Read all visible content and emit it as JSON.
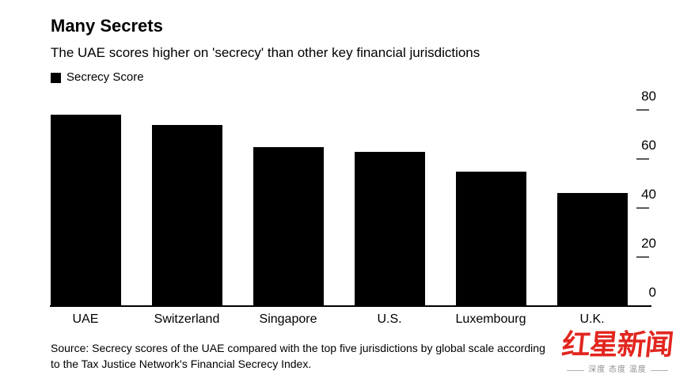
{
  "header": {
    "title": "Many Secrets",
    "subtitle": "The UAE scores higher on 'secrecy' than other key financial jurisdictions"
  },
  "legend": {
    "label": "Secrecy Score",
    "swatch_color": "#000000"
  },
  "chart_data": {
    "type": "bar",
    "title": "Many Secrets",
    "subtitle": "The UAE scores higher on 'secrecy' than other key financial jurisdictions",
    "series_name": "Secrecy Score",
    "categories": [
      "UAE",
      "Switzerland",
      "Singapore",
      "U.S.",
      "Luxembourg",
      "U.K."
    ],
    "values": [
      78,
      74,
      65,
      63,
      55,
      46
    ],
    "xlabel": "",
    "ylabel": "",
    "ylim": [
      0,
      80
    ],
    "yticks": [
      0,
      20,
      40,
      60,
      80
    ],
    "axis_side": "right",
    "grid": false,
    "legend_position": "top-left",
    "bar_color": "#000000",
    "axis_line_color": "#000000",
    "tick_color": "#5a5a5a"
  },
  "source": {
    "lines": [
      "Source: Secrecy scores of the UAE compared with the top five jurisdictions by global scale according",
      "to the Tax Justice Network's Financial Secrecy Index."
    ]
  },
  "watermark": {
    "name": "红星新闻",
    "tagline": "深度 态度 温度",
    "color": "#e2261f"
  }
}
